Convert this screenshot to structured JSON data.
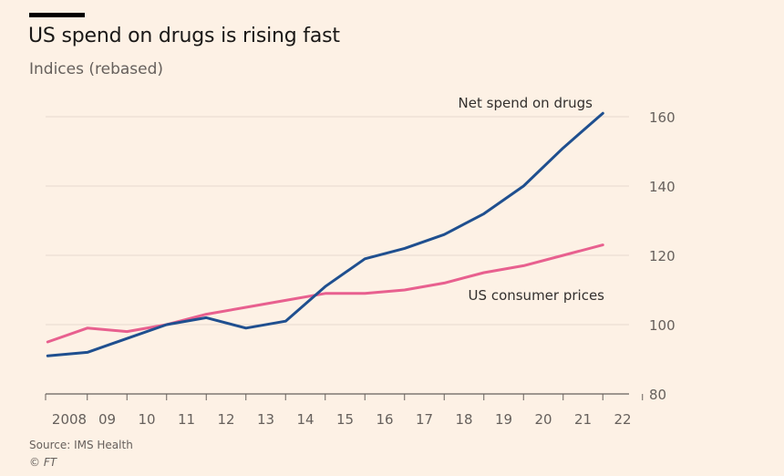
{
  "header": {
    "title": "US spend on drugs is rising fast",
    "subtitle": "Indices (rebased)"
  },
  "footer": {
    "source": "Source: IMS Health",
    "credit": "© FT"
  },
  "colors": {
    "background": "#fdf1e5",
    "net_spend": "#1f4f8f",
    "consumer_prices": "#e8608f",
    "gridline": "#e6d9ce"
  },
  "chart_data": {
    "type": "line",
    "title": "US spend on drugs is rising fast",
    "subtitle": "Indices (rebased)",
    "xlabel": "",
    "ylabel": "",
    "ylim": [
      80,
      160
    ],
    "xlim": [
      2007.6,
      2022
    ],
    "grid": true,
    "y_axis_side": "right",
    "x_ticks": [
      {
        "value": 2008,
        "label": "2008"
      },
      {
        "value": 2009,
        "label": "09"
      },
      {
        "value": 2010,
        "label": "10"
      },
      {
        "value": 2011,
        "label": "11"
      },
      {
        "value": 2012,
        "label": "12"
      },
      {
        "value": 2013,
        "label": "13"
      },
      {
        "value": 2014,
        "label": "14"
      },
      {
        "value": 2015,
        "label": "15"
      },
      {
        "value": 2016,
        "label": "16"
      },
      {
        "value": 2017,
        "label": "17"
      },
      {
        "value": 2018,
        "label": "18"
      },
      {
        "value": 2019,
        "label": "19"
      },
      {
        "value": 2020,
        "label": "20"
      },
      {
        "value": 2021,
        "label": "21"
      },
      {
        "value": 2022,
        "label": "22"
      }
    ],
    "y_ticks": [
      {
        "value": 80,
        "label": "80"
      },
      {
        "value": 100,
        "label": "100"
      },
      {
        "value": 120,
        "label": "120"
      },
      {
        "value": 140,
        "label": "140"
      },
      {
        "value": 160,
        "label": "160"
      }
    ],
    "series": [
      {
        "name": "Net spend on drugs",
        "color": "#1f4f8f",
        "x": [
          2007.5,
          2008.5,
          2009.5,
          2010.5,
          2011.5,
          2012.5,
          2013.5,
          2014.5,
          2015.5,
          2016.5,
          2017.5,
          2018.5,
          2019.5,
          2020.5,
          2021.5
        ],
        "values": [
          91,
          92,
          96,
          100,
          102,
          99,
          101,
          111,
          119,
          122,
          126,
          132,
          140,
          151,
          161
        ]
      },
      {
        "name": "US consumer prices",
        "color": "#e8608f",
        "x": [
          2007.5,
          2008.5,
          2009.5,
          2010.5,
          2011.5,
          2012.5,
          2013.5,
          2014.5,
          2015.5,
          2016.5,
          2017.5,
          2018.5,
          2019.5,
          2020.5,
          2021.5
        ],
        "values": [
          95,
          99,
          98,
          100,
          103,
          105,
          107,
          109,
          109,
          110,
          112,
          115,
          117,
          120,
          123
        ]
      }
    ]
  }
}
